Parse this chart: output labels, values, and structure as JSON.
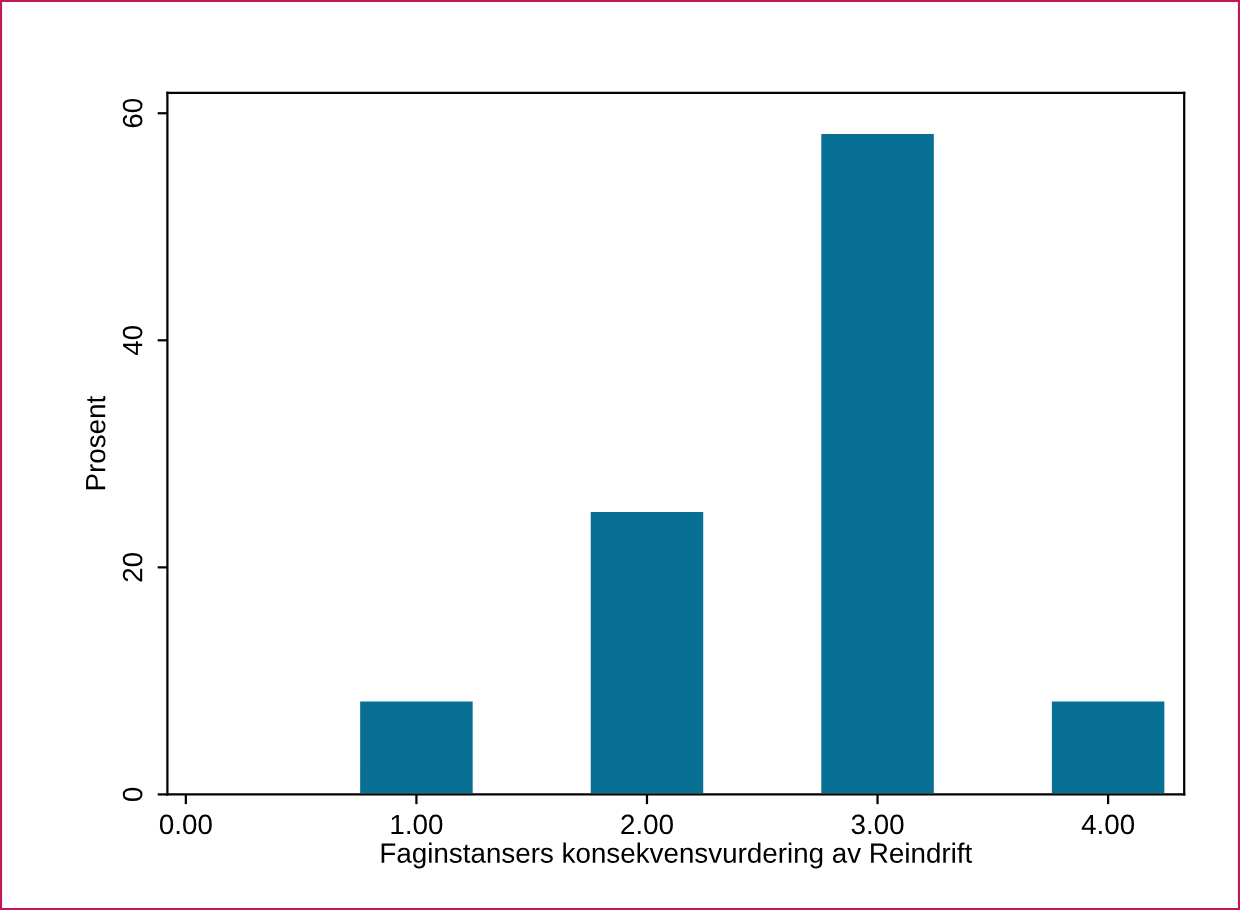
{
  "chart_data": {
    "type": "bar",
    "xlabel": "Faginstansers konsekvensvurdering av Reindrift",
    "ylabel": "Prosent",
    "x": [
      1,
      2,
      3,
      4
    ],
    "values": [
      8.3,
      25,
      58.3,
      8.3
    ],
    "color": "#087094",
    "xlim": [
      -0.08,
      4.33
    ],
    "xticks": [
      {
        "value": 0,
        "label": "0.00"
      },
      {
        "value": 1,
        "label": "1.00"
      },
      {
        "value": 2,
        "label": "2.00"
      },
      {
        "value": 3,
        "label": "3.00"
      },
      {
        "value": 4,
        "label": "4.00"
      }
    ],
    "ylim": [
      0,
      61.8
    ],
    "yticks": [
      0,
      20,
      40,
      60
    ],
    "grid": false
  }
}
